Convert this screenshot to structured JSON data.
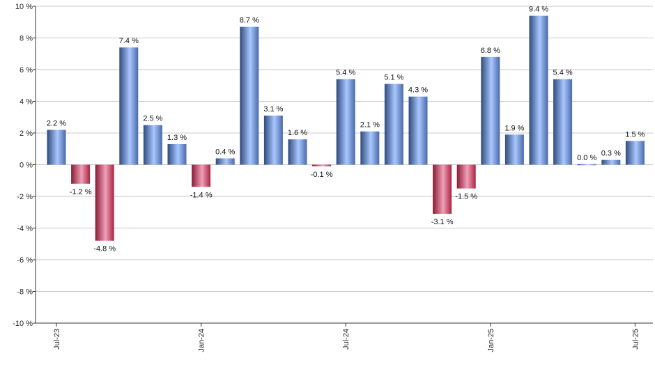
{
  "chart_data": {
    "type": "bar",
    "categories": [
      "Jul-23",
      "Aug-23",
      "Sep-23",
      "Oct-23",
      "Nov-23",
      "Dec-23",
      "Jan-24",
      "Feb-24",
      "Mar-24",
      "Apr-24",
      "May-24",
      "Jun-24",
      "Jul-24",
      "Aug-24",
      "Sep-24",
      "Oct-24",
      "Nov-24",
      "Dec-24",
      "Jan-25",
      "Feb-25",
      "Mar-25",
      "Apr-25",
      "May-25",
      "Jun-25",
      "Jul-25"
    ],
    "x_tick_labels": [
      "Jul-23",
      "Jan-24",
      "Jul-24",
      "Jan-25",
      "Jul-25"
    ],
    "values": [
      2.2,
      -1.2,
      -4.8,
      7.4,
      2.5,
      1.3,
      -1.4,
      0.4,
      8.7,
      3.1,
      1.6,
      -0.1,
      5.4,
      2.1,
      5.1,
      4.3,
      -3.1,
      -1.5,
      6.8,
      1.9,
      9.4,
      5.4,
      0.0,
      0.3,
      1.5
    ],
    "data_labels": [
      "2.2 %",
      "-1.2 %",
      "-4.8 %",
      "7.4 %",
      "2.5 %",
      "1.3 %",
      "-1.4 %",
      "0.4 %",
      "8.7 %",
      "3.1 %",
      "1.6 %",
      "-0.1 %",
      "5.4 %",
      "2.1 %",
      "5.1 %",
      "4.3 %",
      "-3.1 %",
      "-1.5 %",
      "6.8 %",
      "1.9 %",
      "9.4 %",
      "5.4 %",
      "0.0 %",
      "0.3 %",
      "1.5 %"
    ],
    "y_ticks": [
      -10,
      -8,
      -6,
      -4,
      -2,
      0,
      2,
      4,
      6,
      8,
      10
    ],
    "y_tick_labels": [
      "-10 %",
      "-8 %",
      "-6 %",
      "-4 %",
      "-2 %",
      "0 %",
      "2 %",
      "4 %",
      "6 %",
      "8 %",
      "10 %"
    ],
    "ylim": [
      -10,
      10
    ],
    "title": "",
    "xlabel": "",
    "ylabel": "",
    "grid": true,
    "colors": {
      "positive_dark": "#2f4a7e",
      "positive_light": "#a9c8ff",
      "negative_dark": "#8a1a33",
      "negative_light": "#f0a0b8",
      "grid": "#c8c8c8",
      "axis": "#333333"
    }
  }
}
